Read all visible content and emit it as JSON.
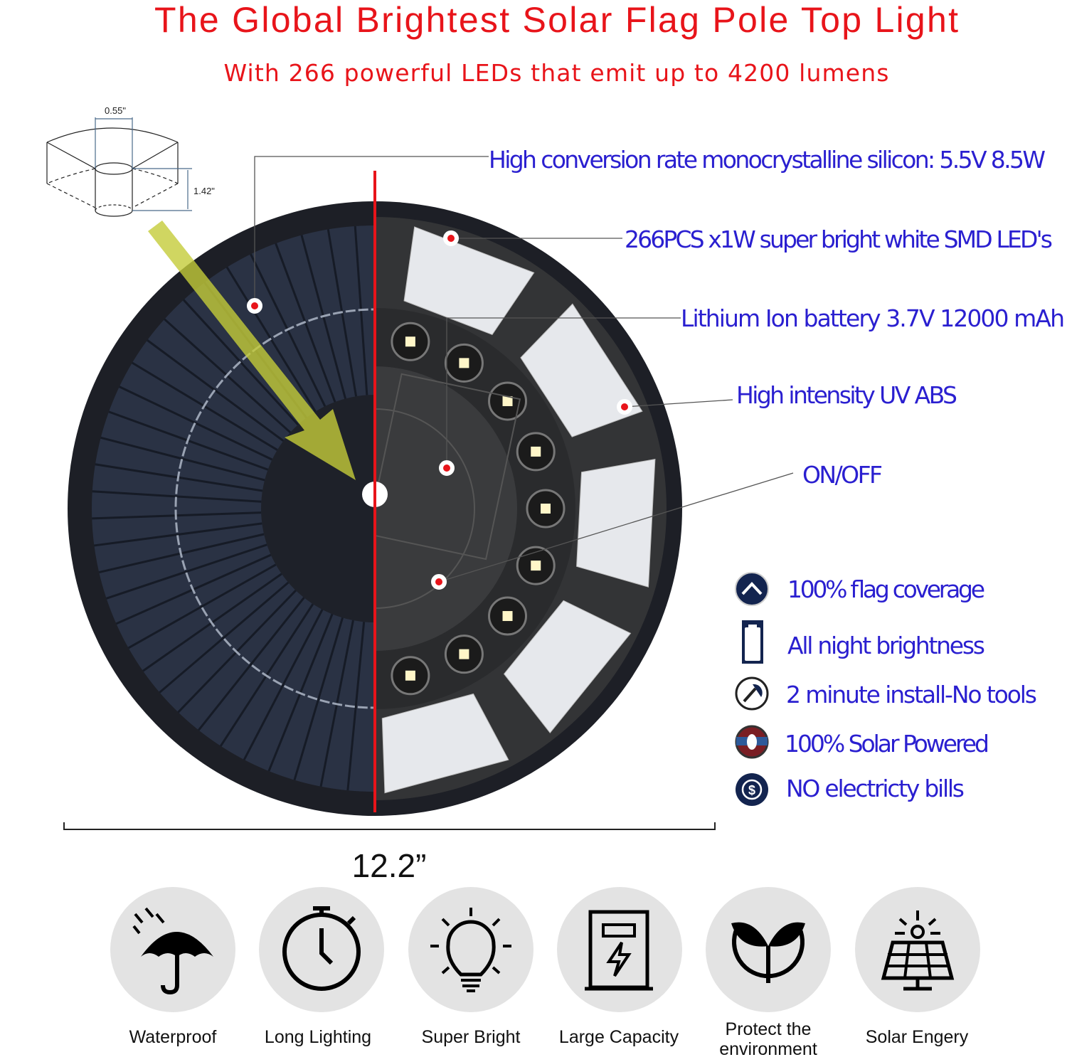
{
  "header": {
    "title": "The Global Brightest Solar Flag Pole Top Light",
    "subtitle": "With 266 powerful LEDs that emit up to 4200 lumens"
  },
  "dimension_diagram": {
    "hole_diameter": "0.55\"",
    "height": "1.42\""
  },
  "callouts": [
    "High conversion rate monocrystalline silicon: 5.5V 8.5W",
    "266PCS x1W super bright white SMD LED's",
    "Lithium Ion battery 3.7V  12000 mAh",
    "High intensity UV ABS",
    "ON/OFF"
  ],
  "features": [
    {
      "icon": "chevron-up-icon",
      "label": "100% flag coverage"
    },
    {
      "icon": "battery-icon",
      "label": "All night brightness"
    },
    {
      "icon": "tools-clock-icon",
      "label": "2 minute install-No tools"
    },
    {
      "icon": "leaf-recycle-icon",
      "label": "100% Solar Powered"
    },
    {
      "icon": "dollar-icon",
      "label": "NO electricty bills"
    }
  ],
  "diameter_label": "12.2”",
  "bottom_icons": [
    {
      "icon": "umbrella-rain-icon",
      "label": "Waterproof"
    },
    {
      "icon": "stopwatch-icon",
      "label": "Long Lighting"
    },
    {
      "icon": "lightbulb-icon",
      "label": "Super Bright"
    },
    {
      "icon": "battery-charge-icon",
      "label": "Large Capacity"
    },
    {
      "icon": "sprout-icon",
      "label_line1": "Protect the",
      "label_line2": "environment"
    },
    {
      "icon": "solar-panel-icon",
      "label": "Solar Engery"
    }
  ],
  "colors": {
    "title": "#e8141a",
    "callout_text": "#2a1fd0",
    "divider": "#e8141a",
    "icon_bg": "#e3e3e3"
  }
}
